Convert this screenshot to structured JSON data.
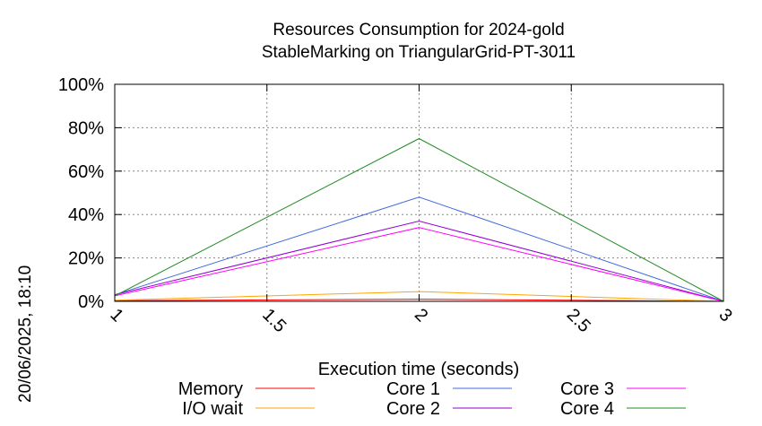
{
  "chart_data": {
    "type": "line",
    "title": "Resources Consumption for 2024-gold",
    "subtitle": "StableMarking on TriangularGrid-PT-3011",
    "xlabel": "Execution time (seconds)",
    "ylabel": "",
    "timestamp": "20/06/2025, 18:10",
    "xlim": [
      1,
      3
    ],
    "ylim": [
      0,
      100
    ],
    "x_ticks": [
      1,
      1.5,
      2,
      2.5,
      3
    ],
    "x_tick_labels": [
      "1",
      "1.5",
      "2",
      "2.5",
      "3"
    ],
    "y_ticks": [
      0,
      20,
      40,
      60,
      80,
      100
    ],
    "y_tick_labels": [
      "0%",
      "20%",
      "40%",
      "60%",
      "80%",
      "100%"
    ],
    "grid": true,
    "legend_position": "bottom",
    "x": [
      1,
      2,
      3
    ],
    "series": [
      {
        "name": "Memory",
        "color": "#ff0000",
        "values": [
          0.3,
          1,
          0
        ]
      },
      {
        "name": "I/O wait",
        "color": "#ffa500",
        "values": [
          0.5,
          4.5,
          0
        ]
      },
      {
        "name": "Core 1",
        "color": "#4169e1",
        "values": [
          3,
          48,
          0
        ]
      },
      {
        "name": "Core 2",
        "color": "#9400d3",
        "values": [
          3,
          37,
          0
        ]
      },
      {
        "name": "Core 3",
        "color": "#ff00ff",
        "values": [
          2.5,
          34,
          0
        ]
      },
      {
        "name": "Core 4",
        "color": "#228b22",
        "values": [
          2.5,
          75,
          0
        ]
      }
    ]
  }
}
